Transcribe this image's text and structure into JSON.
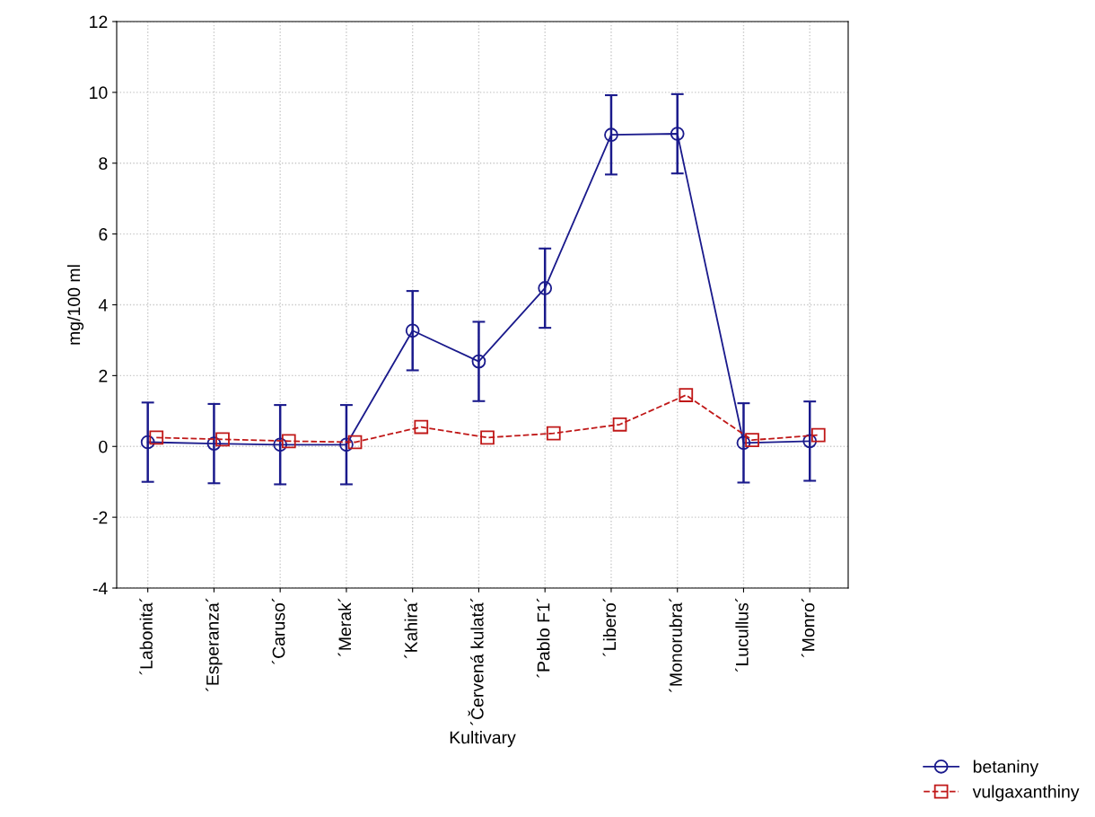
{
  "chart_data": {
    "type": "line",
    "xlabel": "Kultivary",
    "ylabel": "mg/100 ml",
    "categories": [
      "´Labonita´",
      "´Esperanza´",
      "´Caruso´",
      "´Merak´",
      "´Kahira´",
      "´Červená kulatá´",
      "´Pablo F1´",
      "´Libero´",
      "´Monorubra´",
      "´Lucullus´",
      "´Monro´"
    ],
    "series": [
      {
        "name": "betaniny",
        "color": "#1a1a8c",
        "marker": "circle",
        "line_style": "solid",
        "values": [
          0.12,
          0.08,
          0.05,
          0.05,
          3.27,
          2.4,
          4.47,
          8.8,
          8.83,
          0.1,
          0.15
        ],
        "errors": [
          1.12,
          1.12,
          1.12,
          1.12,
          1.12,
          1.12,
          1.12,
          1.12,
          1.12,
          1.12,
          1.12
        ]
      },
      {
        "name": "vulgaxanthiny",
        "color": "#c01818",
        "marker": "square",
        "line_style": "dashed",
        "values": [
          0.25,
          0.2,
          0.15,
          0.12,
          0.55,
          0.25,
          0.37,
          0.62,
          1.45,
          0.18,
          0.32
        ]
      }
    ],
    "ylim": [
      -4,
      12
    ],
    "yticks": [
      -4,
      -2,
      0,
      2,
      4,
      6,
      8,
      10,
      12
    ],
    "grid": true,
    "legend": "bottom right"
  }
}
